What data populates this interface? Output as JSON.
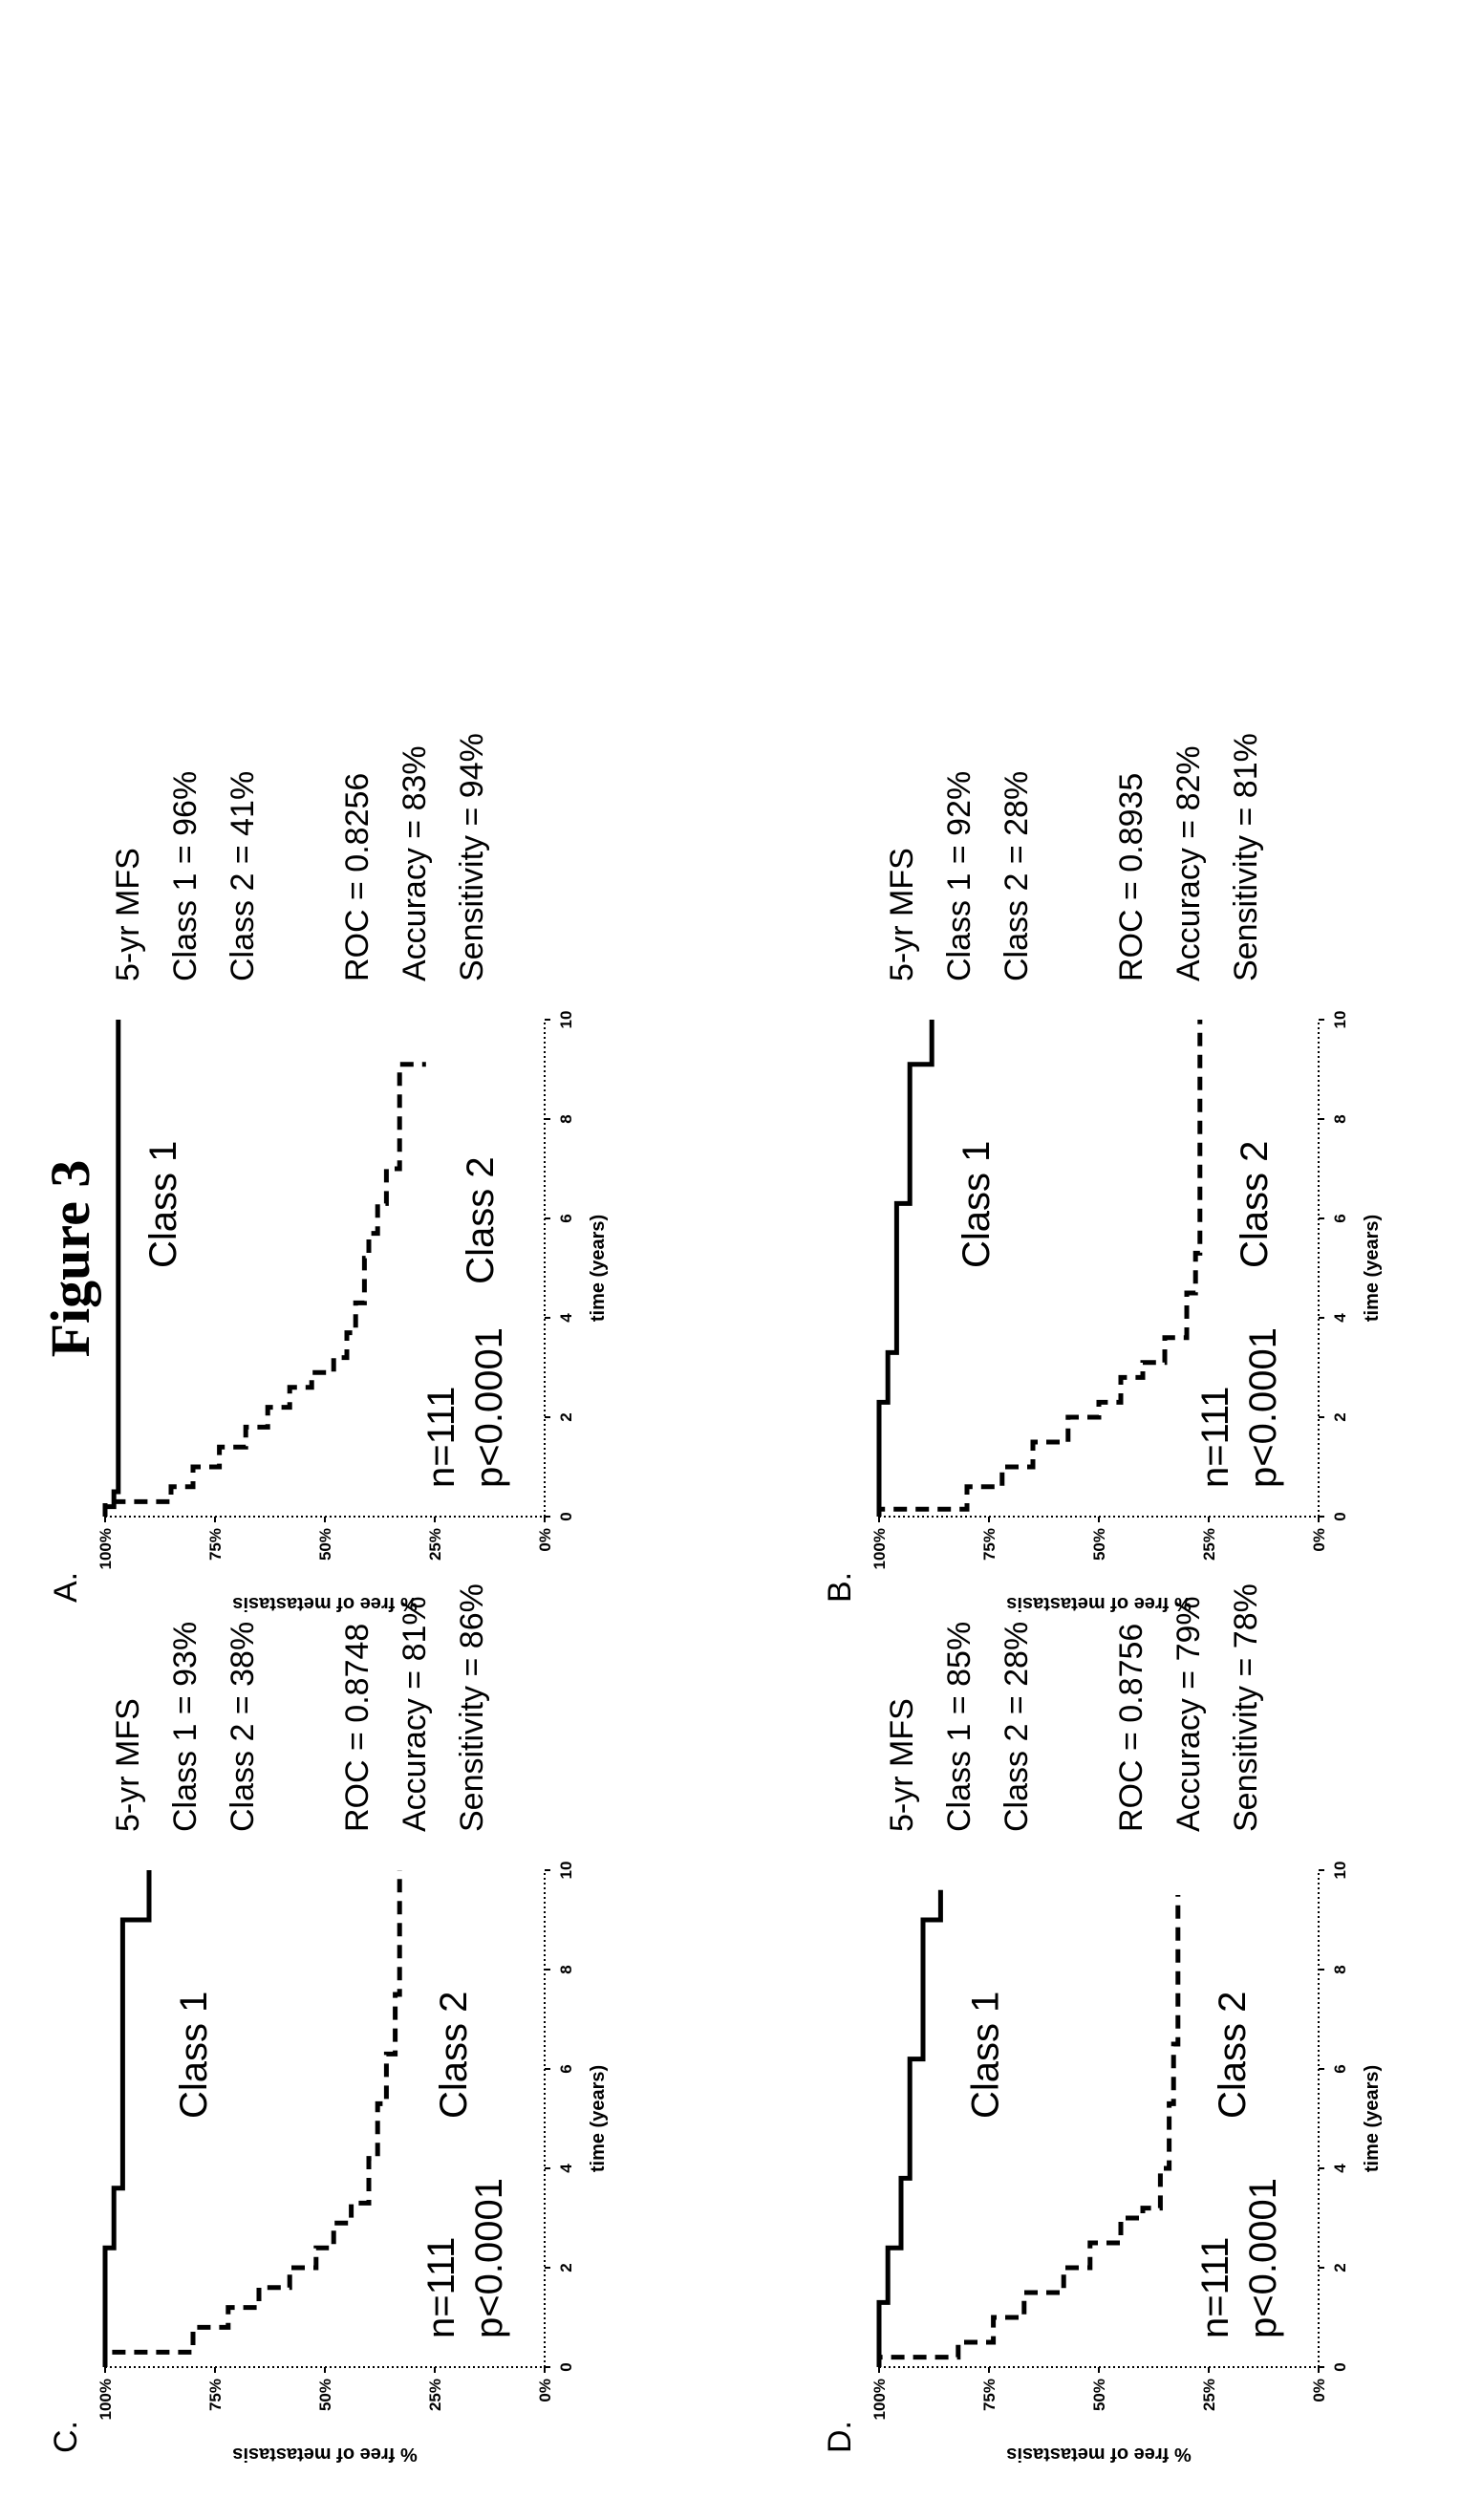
{
  "figure_title": "Figure 3",
  "chart_data": [
    {
      "panel_label": "A.",
      "type": "line",
      "xlabel": "time (years)",
      "ylabel": "% free of metastasis",
      "x_ticks": [
        "0",
        "2",
        "4",
        "6",
        "8",
        "10"
      ],
      "y_ticks": [
        "0%",
        "25%",
        "50%",
        "75%",
        "100%"
      ],
      "xlim": [
        0,
        10
      ],
      "ylim": [
        0,
        100
      ],
      "grid": false,
      "annotations": {
        "n": "n=111",
        "p": "p<0.0001"
      },
      "series": [
        {
          "name": "Class 1",
          "style": "solid",
          "x": [
            0,
            0.2,
            0.2,
            0.5,
            0.5,
            10
          ],
          "y": [
            100,
            100,
            98,
            98,
            97,
            97
          ]
        },
        {
          "name": "Class 2",
          "style": "dashed",
          "x": [
            0,
            0.3,
            0.6,
            1.0,
            1.4,
            1.8,
            2.2,
            2.6,
            2.9,
            3.2,
            3.7,
            4.3,
            5.2,
            5.7,
            6.3,
            7.0,
            9.0,
            9.1
          ],
          "y": [
            100,
            85,
            80,
            74,
            68,
            63,
            58,
            53,
            48,
            45,
            43,
            41,
            40,
            38,
            36,
            33,
            33,
            27
          ]
        }
      ],
      "stats": {
        "title": "5-yr MFS",
        "class1": "Class 1 = 96%",
        "class2": "Class 2 = 41%",
        "roc": "ROC = 0.8256",
        "accuracy": "Accuracy = 83%",
        "sensitivity": "Sensitivity = 94%"
      }
    },
    {
      "panel_label": "B.",
      "type": "line",
      "xlabel": "time (years)",
      "ylabel": "% free of metastasis",
      "x_ticks": [
        "0",
        "2",
        "4",
        "6",
        "8",
        "10"
      ],
      "y_ticks": [
        "0%",
        "25%",
        "50%",
        "75%",
        "100%"
      ],
      "xlim": [
        0,
        10
      ],
      "ylim": [
        0,
        100
      ],
      "grid": false,
      "annotations": {
        "n": "n=111",
        "p": "p<0.0001"
      },
      "series": [
        {
          "name": "Class 1",
          "style": "solid",
          "x": [
            0,
            2.3,
            2.3,
            3.3,
            3.3,
            6.3,
            6.3,
            9.1,
            9.1,
            10
          ],
          "y": [
            100,
            100,
            98,
            98,
            96,
            96,
            93,
            93,
            88,
            88
          ]
        },
        {
          "name": "Class 2",
          "style": "dashed",
          "x": [
            0,
            0.15,
            0.6,
            1.0,
            1.5,
            2.0,
            2.3,
            2.8,
            3.1,
            3.6,
            4.5,
            5.3,
            6.0,
            7.0,
            8.0,
            9.0,
            10
          ],
          "y": [
            100,
            80,
            72,
            65,
            57,
            50,
            45,
            40,
            35,
            30,
            28,
            27,
            27,
            27,
            27,
            27,
            27
          ]
        }
      ],
      "stats": {
        "title": "5-yr MFS",
        "class1": "Class 1 = 92%",
        "class2": "Class 2 = 28%",
        "roc": "ROC = 0.8935",
        "accuracy": "Accuracy = 82%",
        "sensitivity": "Sensitivity = 81%"
      }
    },
    {
      "panel_label": "C.",
      "type": "line",
      "xlabel": "time (years)",
      "ylabel": "% free of metastasis",
      "x_ticks": [
        "0",
        "2",
        "4",
        "6",
        "8",
        "10"
      ],
      "y_ticks": [
        "0%",
        "25%",
        "50%",
        "75%",
        "100%"
      ],
      "xlim": [
        0,
        10
      ],
      "ylim": [
        0,
        100
      ],
      "grid": false,
      "annotations": {
        "n": "n=111",
        "p": "p<0.0001"
      },
      "series": [
        {
          "name": "Class 1",
          "style": "solid",
          "x": [
            0,
            2.4,
            2.4,
            3.6,
            3.6,
            9.0,
            9.0,
            10
          ],
          "y": [
            100,
            100,
            98,
            98,
            96,
            96,
            90,
            90
          ]
        },
        {
          "name": "Class 2",
          "style": "dashed",
          "x": [
            0,
            0.3,
            0.8,
            1.2,
            1.6,
            2.0,
            2.4,
            2.9,
            3.3,
            4.2,
            5.3,
            6.3,
            7.5,
            10
          ],
          "y": [
            100,
            80,
            72,
            65,
            58,
            52,
            48,
            44,
            40,
            38,
            36,
            34,
            33,
            33
          ]
        }
      ],
      "stats": {
        "title": "5-yr MFS",
        "class1": "Class 1 = 93%",
        "class2": "Class 2 = 38%",
        "roc": "ROC = 0.8748",
        "accuracy": "Accuracy = 81%",
        "sensitivity": "Sensitivity = 86%"
      }
    },
    {
      "panel_label": "D.",
      "type": "line",
      "xlabel": "time (years)",
      "ylabel": "% free of metastasis",
      "x_ticks": [
        "0",
        "2",
        "4",
        "6",
        "8",
        "10"
      ],
      "y_ticks": [
        "0%",
        "25%",
        "50%",
        "75%",
        "100%"
      ],
      "xlim": [
        0,
        10
      ],
      "ylim": [
        0,
        100
      ],
      "grid": false,
      "annotations": {
        "n": "n=111",
        "p": "p<0.0001"
      },
      "series": [
        {
          "name": "Class 1",
          "style": "solid",
          "x": [
            0,
            1.3,
            1.3,
            2.4,
            2.4,
            3.8,
            3.8,
            6.2,
            6.2,
            9.0,
            9.0,
            9.6
          ],
          "y": [
            100,
            100,
            98,
            98,
            95,
            95,
            93,
            93,
            90,
            90,
            86,
            86
          ]
        },
        {
          "name": "Class 2",
          "style": "dashed",
          "x": [
            0,
            0.2,
            0.5,
            1.0,
            1.5,
            2.0,
            2.5,
            3.0,
            3.2,
            4.0,
            5.3,
            6.5,
            7.5,
            9.5
          ],
          "y": [
            100,
            82,
            74,
            67,
            58,
            52,
            45,
            40,
            36,
            34,
            33,
            32,
            32,
            32
          ]
        }
      ],
      "stats": {
        "title": "5-yr MFS",
        "class1": "Class 1 = 85%",
        "class2": "Class 2 = 28%",
        "roc": "ROC = 0.8756",
        "accuracy": "Accuracy = 79%",
        "sensitivity": "Sensitivity = 78%"
      }
    }
  ]
}
